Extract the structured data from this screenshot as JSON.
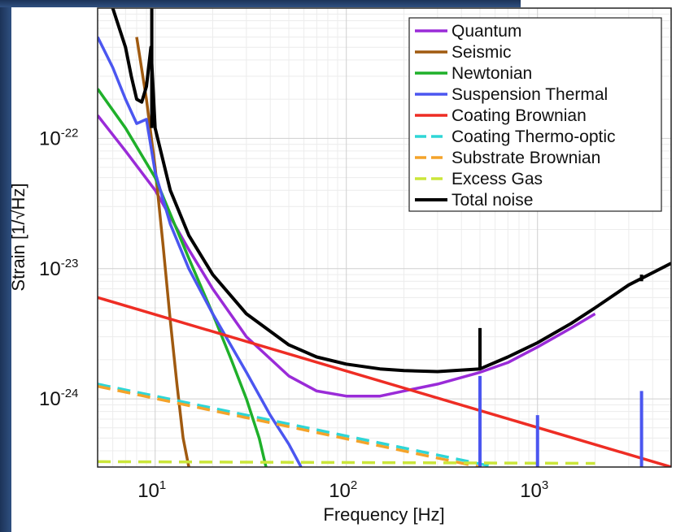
{
  "chart_data": {
    "type": "line",
    "xlabel": "Frequency [Hz]",
    "ylabel": "Strain [1/√Hz]",
    "xscale": "log",
    "yscale": "log",
    "xlim": [
      5,
      5000
    ],
    "ylim": [
      3e-25,
      1e-21
    ],
    "grid": true,
    "legend_position": "top-right",
    "x_ticks": [
      {
        "value": 10,
        "base": "10",
        "exp": "1"
      },
      {
        "value": 100,
        "base": "10",
        "exp": "2"
      },
      {
        "value": 1000,
        "base": "10",
        "exp": "3"
      }
    ],
    "y_ticks": [
      {
        "value": 1e-24,
        "base": "10",
        "exp": "-24"
      },
      {
        "value": 1e-23,
        "base": "10",
        "exp": "-23"
      },
      {
        "value": 1e-22,
        "base": "10",
        "exp": "-22"
      }
    ],
    "series": [
      {
        "name": "Quantum",
        "color": "#9a2bd8",
        "dash": false,
        "x": [
          5,
          7,
          10,
          15,
          20,
          30,
          50,
          70,
          100,
          150,
          200,
          300,
          500,
          700,
          1000,
          1500,
          2000
        ],
        "y": [
          1.5e-22,
          8e-23,
          4e-23,
          1.4e-23,
          7e-24,
          3e-24,
          1.5e-24,
          1.15e-24,
          1.05e-24,
          1.05e-24,
          1.15e-24,
          1.3e-24,
          1.6e-24,
          1.9e-24,
          2.5e-24,
          3.5e-24,
          4.5e-24
        ]
      },
      {
        "name": "Seismic",
        "color": "#a05a10",
        "dash": false,
        "x": [
          8,
          9,
          10,
          11,
          12,
          13,
          14,
          15
        ],
        "y": [
          6e-22,
          2e-22,
          6e-23,
          1.5e-23,
          4e-24,
          1.3e-24,
          5e-25,
          3e-25
        ]
      },
      {
        "name": "Newtonian",
        "color": "#1fb02a",
        "dash": false,
        "x": [
          5,
          7,
          10,
          15,
          20,
          25,
          30,
          35,
          38
        ],
        "y": [
          2.4e-22,
          1.2e-22,
          5e-23,
          1.2e-23,
          4.5e-24,
          2e-24,
          1e-24,
          5e-25,
          3e-25
        ]
      },
      {
        "name": "Suspension Thermal",
        "color": "#4b56f0",
        "dash": false,
        "x": [
          5,
          6,
          7,
          8,
          9,
          10,
          12,
          15,
          20,
          30,
          40,
          50,
          58
        ],
        "y": [
          6e-22,
          3.5e-22,
          2e-22,
          1.3e-22,
          1.4e-22,
          5.5e-23,
          2.2e-23,
          1e-23,
          4.5e-24,
          1.6e-24,
          7.5e-25,
          4.5e-25,
          3e-25
        ]
      },
      {
        "name": "Coating Brownian",
        "color": "#ee2d24",
        "dash": false,
        "x": [
          5,
          5000
        ],
        "y": [
          6e-24,
          3e-25
        ]
      },
      {
        "name": "Coating Thermo-optic",
        "color": "#2fd6d6",
        "dash": true,
        "x": [
          5,
          600
        ],
        "y": [
          1.3e-24,
          3e-25
        ]
      },
      {
        "name": "Substrate Brownian",
        "color": "#f4a32a",
        "dash": true,
        "x": [
          5,
          500
        ],
        "y": [
          1.25e-24,
          3e-25
        ]
      },
      {
        "name": "Excess Gas",
        "color": "#cbe63a",
        "dash": true,
        "x": [
          5,
          2000
        ],
        "y": [
          3.3e-25,
          3.2e-25
        ]
      },
      {
        "name": "Total noise",
        "color": "#000000",
        "dash": false,
        "x": [
          6,
          7,
          7.5,
          8,
          8.5,
          9,
          9.5,
          10,
          12,
          15,
          20,
          30,
          50,
          70,
          100,
          150,
          200,
          300,
          500,
          700,
          1000,
          1500,
          2000,
          3000,
          5000
        ],
        "y": [
          1e-21,
          5e-22,
          3e-22,
          2e-22,
          1.9e-22,
          2.5e-22,
          5e-22,
          1.2e-22,
          4e-23,
          1.8e-23,
          9e-24,
          4.5e-24,
          2.6e-24,
          2.1e-24,
          1.85e-24,
          1.7e-24,
          1.65e-24,
          1.62e-24,
          1.7e-24,
          2.1e-24,
          2.7e-24,
          3.8e-24,
          5e-24,
          7.5e-24,
          1.1e-23
        ]
      }
    ],
    "spikes": [
      {
        "color": "#4b56f0",
        "x": 500,
        "y_low": 3e-25,
        "y_high": 1.5e-24
      },
      {
        "color": "#4b56f0",
        "x": 1000,
        "y_low": 3e-25,
        "y_high": 7.5e-25
      },
      {
        "color": "#4b56f0",
        "x": 3500,
        "y_low": 3e-25,
        "y_high": 1.15e-24
      },
      {
        "color": "#000000",
        "x": 500,
        "y_low": 1.7e-24,
        "y_high": 3.5e-24
      },
      {
        "color": "#000000",
        "x": 3500,
        "y_low": 8e-24,
        "y_high": 9e-24
      },
      {
        "color": "#000000",
        "x": 9.6,
        "y_low": 1.2e-22,
        "y_high": 1e-21
      }
    ]
  }
}
